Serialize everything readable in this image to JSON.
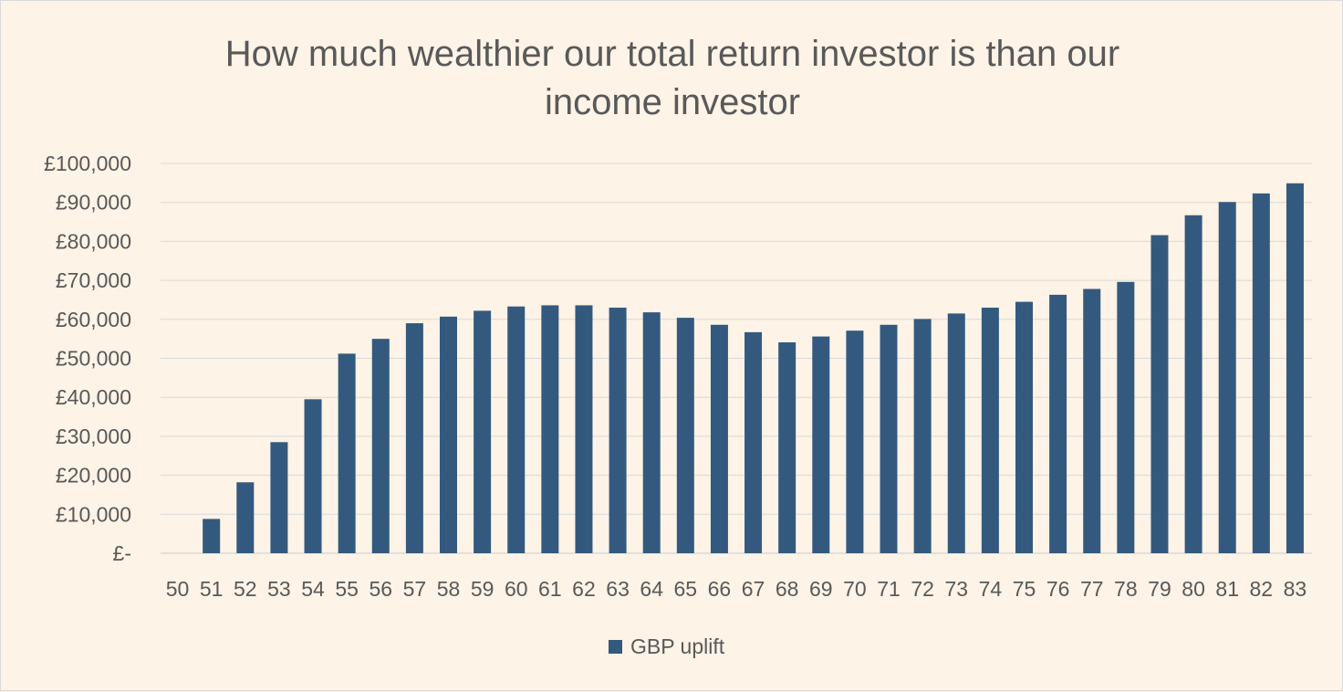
{
  "chart_data": {
    "type": "bar",
    "title_lines": [
      "How much wealthier our total return investor is than our",
      "income investor"
    ],
    "xlabel": "",
    "ylabel": "",
    "categories": [
      "50",
      "51",
      "52",
      "53",
      "54",
      "55",
      "56",
      "57",
      "58",
      "59",
      "60",
      "61",
      "62",
      "63",
      "64",
      "65",
      "66",
      "67",
      "68",
      "69",
      "70",
      "71",
      "72",
      "73",
      "74",
      "75",
      "76",
      "77",
      "78",
      "79",
      "80",
      "81",
      "82",
      "83"
    ],
    "series": [
      {
        "name": "GBP uplift",
        "color": "#335a7e",
        "values": [
          0,
          8800,
          18200,
          28500,
          39500,
          51200,
          55000,
          59000,
          60700,
          62200,
          63300,
          63600,
          63600,
          63000,
          61800,
          60400,
          58600,
          56700,
          54100,
          55600,
          57100,
          58600,
          60100,
          61500,
          63000,
          64500,
          66300,
          67800,
          69600,
          81600,
          86700,
          90100,
          92300,
          94900
        ]
      }
    ],
    "ylim": [
      0,
      100000
    ],
    "y_ticks": [
      0,
      10000,
      20000,
      30000,
      40000,
      50000,
      60000,
      70000,
      80000,
      90000,
      100000
    ],
    "y_tick_labels": [
      "£-",
      "£10,000",
      "£20,000",
      "£30,000",
      "£40,000",
      "£50,000",
      "£60,000",
      "£70,000",
      "£80,000",
      "£90,000",
      "£100,000"
    ],
    "grid": true,
    "legend": "bottom",
    "colors": {
      "background": "#fdf3e6",
      "gridline": "#d9d9d9",
      "text": "#595959",
      "border": "#d9d9d9"
    }
  }
}
